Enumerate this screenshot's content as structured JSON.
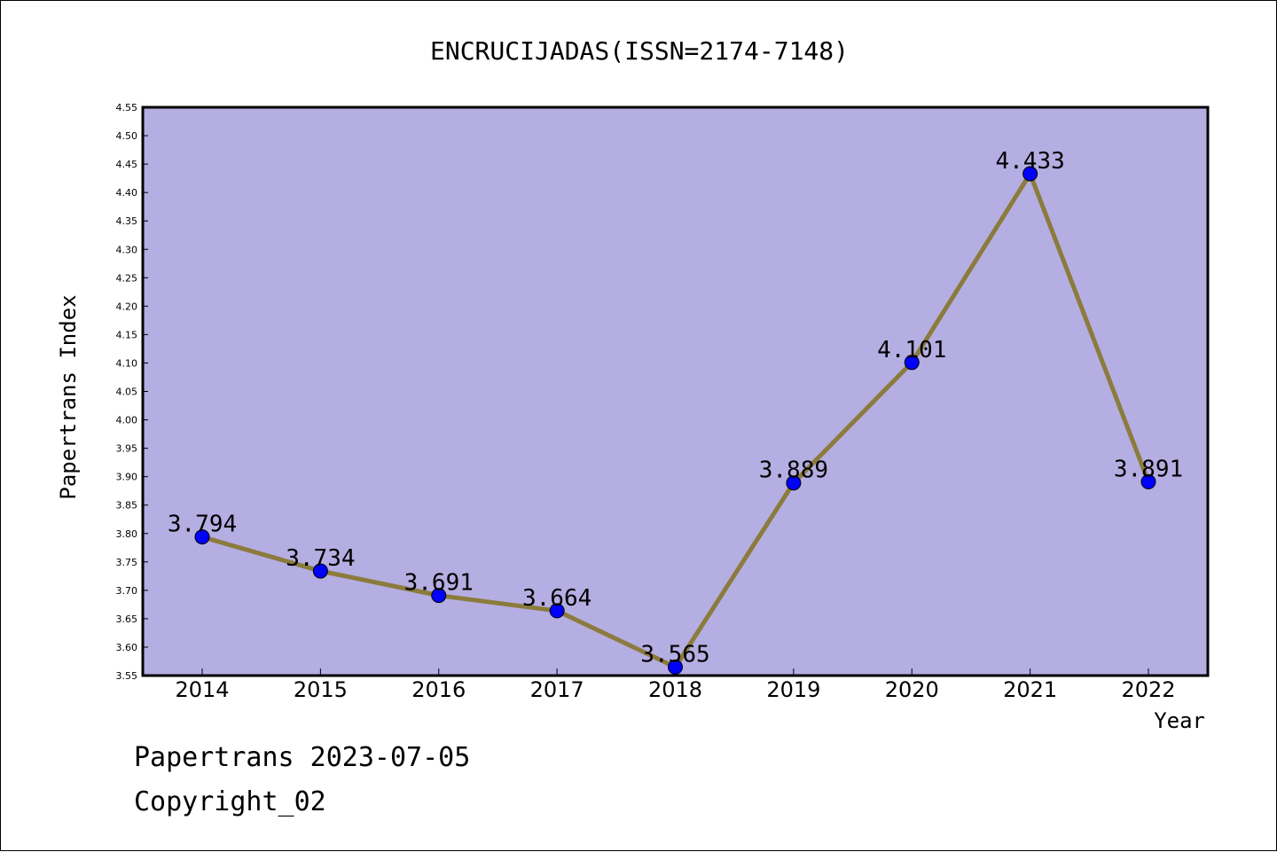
{
  "chart_data": {
    "type": "line",
    "title": "ENCRUCIJADAS(ISSN=2174-7148)",
    "xlabel": "Year",
    "ylabel": "Papertrans Index",
    "categories": [
      "2014",
      "2015",
      "2016",
      "2017",
      "2018",
      "2019",
      "2020",
      "2021",
      "2022"
    ],
    "series": [
      {
        "values": [
          3.794,
          3.734,
          3.691,
          3.664,
          3.565,
          3.889,
          4.101,
          4.433,
          3.891
        ],
        "labels": [
          "3.794",
          "3.734",
          "3.691",
          "3.664",
          "3.565",
          "3.889",
          "4.101",
          "4.433",
          "3.891"
        ]
      }
    ],
    "ylim": [
      3.55,
      4.55
    ],
    "yticks": [
      "3.55",
      "3.60",
      "3.65",
      "3.70",
      "3.75",
      "3.80",
      "3.85",
      "3.90",
      "3.95",
      "4.00",
      "4.05",
      "4.10",
      "4.15",
      "4.20",
      "4.25",
      "4.30",
      "4.35",
      "4.40",
      "4.45",
      "4.50",
      "4.55"
    ],
    "grid": false,
    "colors": {
      "plot_background": "#b5aee2",
      "line": "#8b7b3c",
      "marker": "#0000ff"
    }
  },
  "footer": {
    "date_line": "Papertrans 2023-07-05",
    "copyright": "Copyright_02"
  }
}
